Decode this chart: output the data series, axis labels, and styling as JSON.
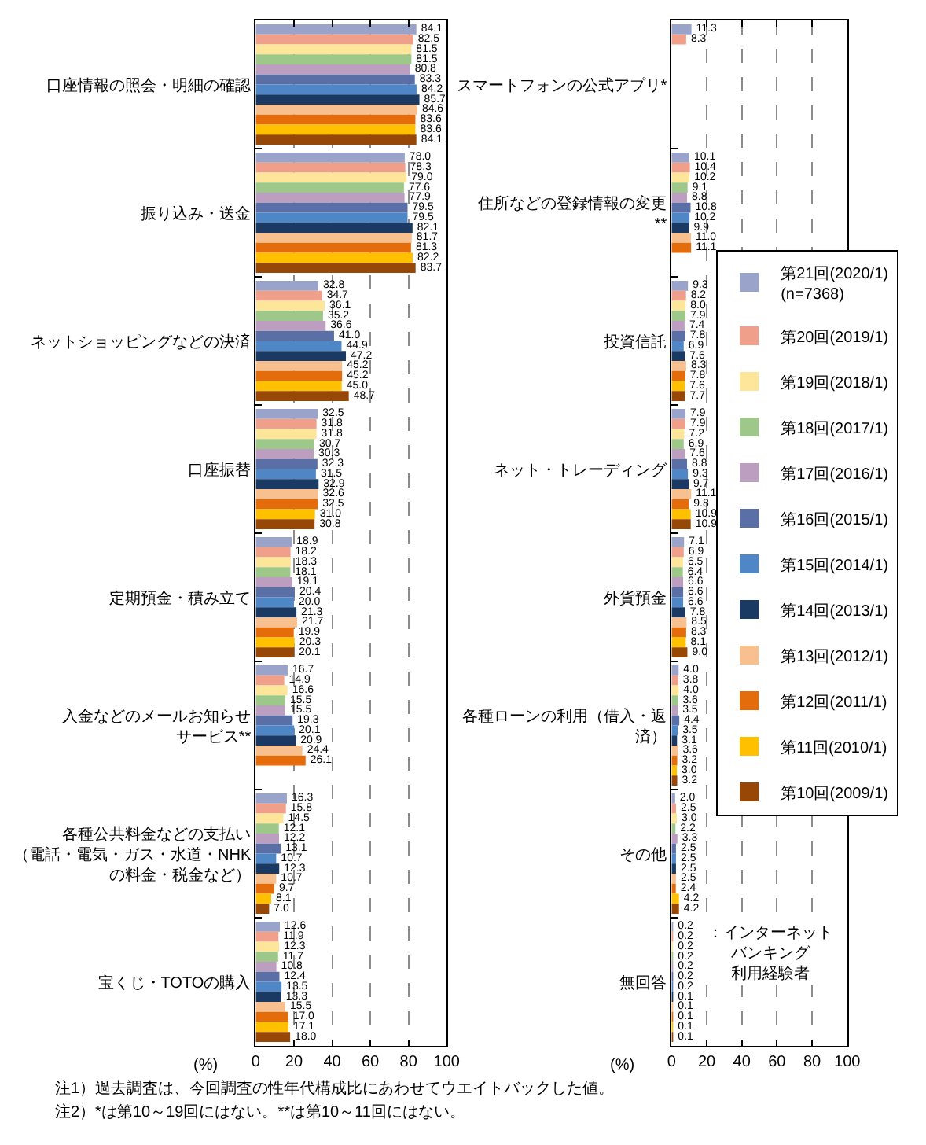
{
  "chart_data": [
    {
      "type": "bar",
      "orientation": "horizontal",
      "xlabel": "(%)",
      "xlim": [
        0,
        100
      ],
      "xticks": [
        0,
        20,
        40,
        60,
        80,
        100
      ],
      "grid": "x",
      "legend": "right",
      "categories": [
        "口座情報の照会・明細の確認",
        "振り込み・送金",
        "ネットショッピングなどの決済",
        "口座振替",
        "定期預金・積み立て",
        "入金などのメールお知らせサービス**",
        "各種公共料金などの支払い（電話・電気・ガス・水道・NHKの料金・税金など）",
        "宝くじ・TOTOの購入"
      ],
      "series": [
        {
          "name": "第21回(2020/1)\n(n=7368)",
          "color": "#9aa3c9",
          "values": [
            84.1,
            78.0,
            32.8,
            32.5,
            18.9,
            16.7,
            16.3,
            12.6
          ],
          "value_labels": [
            "84.1",
            "78.0",
            "32.8",
            "32.5",
            "18.9",
            "16.7",
            "16.3",
            "12.6"
          ]
        },
        {
          "name": "第20回(2019/1)",
          "color": "#f0a08a",
          "values": [
            82.5,
            78.3,
            34.7,
            31.8,
            18.2,
            14.9,
            15.8,
            11.9
          ],
          "value_labels": [
            "82.5",
            "78.3",
            "34.7",
            "31.8",
            "18.2",
            "14.9",
            "15.8",
            "11.9"
          ]
        },
        {
          "name": "第19回(2018/1)",
          "color": "#fde69a",
          "values": [
            81.5,
            79.0,
            36.1,
            31.8,
            18.3,
            16.6,
            14.5,
            12.3
          ],
          "value_labels": [
            "81.5",
            "79.0",
            "36.1",
            "31.8",
            "18.3",
            "16.6",
            "14.5",
            "12.3"
          ]
        },
        {
          "name": "第18回(2017/1)",
          "color": "#9dc88a",
          "values": [
            81.5,
            77.6,
            35.2,
            30.7,
            18.1,
            15.5,
            12.1,
            11.7
          ],
          "value_labels": [
            "81.5",
            "77.6",
            "35.2",
            "30.7",
            "18.1",
            "15.5",
            "12.1",
            "11.7"
          ]
        },
        {
          "name": "第17回(2016/1)",
          "color": "#bb9ec0",
          "values": [
            80.8,
            77.9,
            36.6,
            30.3,
            19.1,
            15.5,
            12.2,
            10.8
          ],
          "value_labels": [
            "80.8",
            "77.9",
            "36.6",
            "30.3",
            "19.1",
            "15.5",
            "12.2",
            "10.8"
          ]
        },
        {
          "name": "第16回(2015/1)",
          "color": "#5a6fa5",
          "values": [
            83.3,
            79.5,
            41.0,
            32.3,
            20.4,
            19.3,
            13.1,
            12.4
          ],
          "value_labels": [
            "83.3",
            "79.5",
            "41.0",
            "32.3",
            "20.4",
            "19.3",
            "13.1",
            "12.4"
          ]
        },
        {
          "name": "第15回(2014/1)",
          "color": "#4f86c6",
          "values": [
            84.2,
            79.5,
            44.9,
            31.5,
            20.0,
            20.1,
            10.7,
            13.5
          ],
          "value_labels": [
            "84.2",
            "79.5",
            "44.9",
            "31.5",
            "20.0",
            "20.1",
            "10.7",
            "13.5"
          ]
        },
        {
          "name": "第14回(2013/1)",
          "color": "#1b3a63",
          "values": [
            85.7,
            82.1,
            47.2,
            32.9,
            21.3,
            20.9,
            12.3,
            13.3
          ],
          "value_labels": [
            "85.7",
            "82.1",
            "47.2",
            "32.9",
            "21.3",
            "20.9",
            "12.3",
            "13.3"
          ]
        },
        {
          "name": "第13回(2012/1)",
          "color": "#f9c08f",
          "values": [
            84.6,
            81.7,
            45.2,
            32.6,
            21.7,
            24.4,
            10.7,
            15.5
          ],
          "value_labels": [
            "84.6",
            "81.7",
            "45.2",
            "32.6",
            "21.7",
            "24.4",
            "10.7",
            "15.5"
          ]
        },
        {
          "name": "第12回(2011/1)",
          "color": "#e46c0a",
          "values": [
            83.6,
            81.3,
            45.2,
            32.5,
            19.9,
            26.1,
            9.7,
            17.0
          ],
          "value_labels": [
            "83.6",
            "81.3",
            "45.2",
            "32.5",
            "19.9",
            "26.1",
            "9.7",
            "17.0"
          ]
        },
        {
          "name": "第11回(2010/1)",
          "color": "#ffc000",
          "values": [
            83.6,
            82.2,
            45.0,
            31.0,
            20.3,
            null,
            8.1,
            17.1
          ],
          "value_labels": [
            "83.6",
            "82.2",
            "45.0",
            "31.0",
            "20.3",
            null,
            "8.1",
            "17.1"
          ]
        },
        {
          "name": "第10回(2009/1)",
          "color": "#974706",
          "values": [
            84.1,
            83.7,
            48.7,
            30.8,
            20.1,
            null,
            7.0,
            18.0
          ],
          "value_labels": [
            "84.1",
            "83.7",
            "48.7",
            "30.8",
            "20.1",
            null,
            "7.0",
            "18.0"
          ]
        }
      ],
      "annotations": [
        "注1）過去調査は、今回調査の性年代構成比にあわせてウエイトバックした値。",
        "注2）*は第10～19回にはない。**は第10～11回にはない。"
      ]
    },
    {
      "type": "bar",
      "orientation": "horizontal",
      "xlabel": "(%)",
      "xlim": [
        0,
        100
      ],
      "xticks": [
        0,
        20,
        40,
        60,
        80,
        100
      ],
      "grid": "x",
      "legend": "right",
      "categories": [
        "スマートフォンの公式アプリ*",
        "住所などの登録情報の変更**",
        "投資信託",
        "ネット・トレーディング",
        "外貨預金",
        "各種ローンの利用（借入・返済）",
        "その他",
        "無回答"
      ],
      "series": [
        {
          "name": "第21回(2020/1)\n(n=7368)",
          "color": "#9aa3c9",
          "values": [
            11.3,
            10.1,
            9.3,
            7.9,
            7.1,
            4.0,
            2.0,
            0.2
          ],
          "value_labels": [
            "11.3",
            "10.1",
            "9.3",
            "7.9",
            "7.1",
            "4.0",
            "2.0",
            "0.2"
          ]
        },
        {
          "name": "第20回(2019/1)",
          "color": "#f0a08a",
          "values": [
            8.3,
            10.4,
            8.2,
            7.9,
            6.9,
            3.8,
            2.5,
            0.2
          ],
          "value_labels": [
            "8.3",
            "10.4",
            "8.2",
            "7.9",
            "6.9",
            "3.8",
            "2.5",
            "0.2"
          ]
        },
        {
          "name": "第19回(2018/1)",
          "color": "#fde69a",
          "values": [
            null,
            10.2,
            8.0,
            7.2,
            6.5,
            4.0,
            3.0,
            0.2
          ],
          "value_labels": [
            null,
            "10.2",
            "8.0",
            "7.2",
            "6.5",
            "4.0",
            "3.0",
            "0.2"
          ]
        },
        {
          "name": "第18回(2017/1)",
          "color": "#9dc88a",
          "values": [
            null,
            9.1,
            7.9,
            6.9,
            6.4,
            3.6,
            2.2,
            0.2
          ],
          "value_labels": [
            null,
            "9.1",
            "7.9",
            "6.9",
            "6.4",
            "3.6",
            "2.2",
            "0.2"
          ]
        },
        {
          "name": "第17回(2016/1)",
          "color": "#bb9ec0",
          "values": [
            null,
            8.8,
            7.4,
            7.6,
            6.6,
            3.5,
            3.3,
            0.2
          ],
          "value_labels": [
            null,
            "8.8",
            "7.4",
            "7.6",
            "6.6",
            "3.5",
            "3.3",
            "0.2"
          ]
        },
        {
          "name": "第16回(2015/1)",
          "color": "#5a6fa5",
          "values": [
            null,
            10.8,
            7.8,
            8.8,
            6.6,
            4.4,
            2.5,
            0.2
          ],
          "value_labels": [
            null,
            "10.8",
            "7.8",
            "8.8",
            "6.6",
            "4.4",
            "2.5",
            "0.2"
          ]
        },
        {
          "name": "第15回(2014/1)",
          "color": "#4f86c6",
          "values": [
            null,
            10.2,
            6.9,
            9.3,
            6.6,
            3.5,
            2.5,
            0.2
          ],
          "value_labels": [
            null,
            "10.2",
            "6.9",
            "9.3",
            "6.6",
            "3.5",
            "2.5",
            "0.2"
          ]
        },
        {
          "name": "第14回(2013/1)",
          "color": "#1b3a63",
          "values": [
            null,
            9.9,
            7.6,
            9.7,
            7.8,
            3.1,
            2.5,
            0.1
          ],
          "value_labels": [
            null,
            "9.9",
            "7.6",
            "9.7",
            "7.8",
            "3.1",
            "2.5",
            "0.1"
          ]
        },
        {
          "name": "第13回(2012/1)",
          "color": "#f9c08f",
          "values": [
            null,
            11.0,
            8.3,
            11.1,
            8.5,
            3.6,
            2.5,
            0.1
          ],
          "value_labels": [
            null,
            "11.0",
            "8.3",
            "11.1",
            "8.5",
            "3.6",
            "2.5",
            "0.1"
          ]
        },
        {
          "name": "第12回(2011/1)",
          "color": "#e46c0a",
          "values": [
            null,
            11.1,
            7.8,
            9.8,
            8.3,
            3.2,
            2.4,
            0.1
          ],
          "value_labels": [
            null,
            "11.1",
            "7.8",
            "9.8",
            "8.3",
            "3.2",
            "2.4",
            "0.1"
          ]
        },
        {
          "name": "第11回(2010/1)",
          "color": "#ffc000",
          "values": [
            null,
            null,
            7.6,
            10.9,
            8.1,
            3.0,
            4.2,
            0.1
          ],
          "value_labels": [
            null,
            null,
            "7.6",
            "10.9",
            "8.1",
            "3.0",
            "4.2",
            "0.1"
          ]
        },
        {
          "name": "第10回(2009/1)",
          "color": "#974706",
          "values": [
            null,
            null,
            7.7,
            10.9,
            9.0,
            3.2,
            4.2,
            0.1
          ],
          "value_labels": [
            null,
            null,
            "7.7",
            "10.9",
            "9.0",
            "3.2",
            "4.2",
            "0.1"
          ]
        }
      ],
      "annotations": [
        "：インターネットバンキング利用経験者"
      ]
    }
  ]
}
